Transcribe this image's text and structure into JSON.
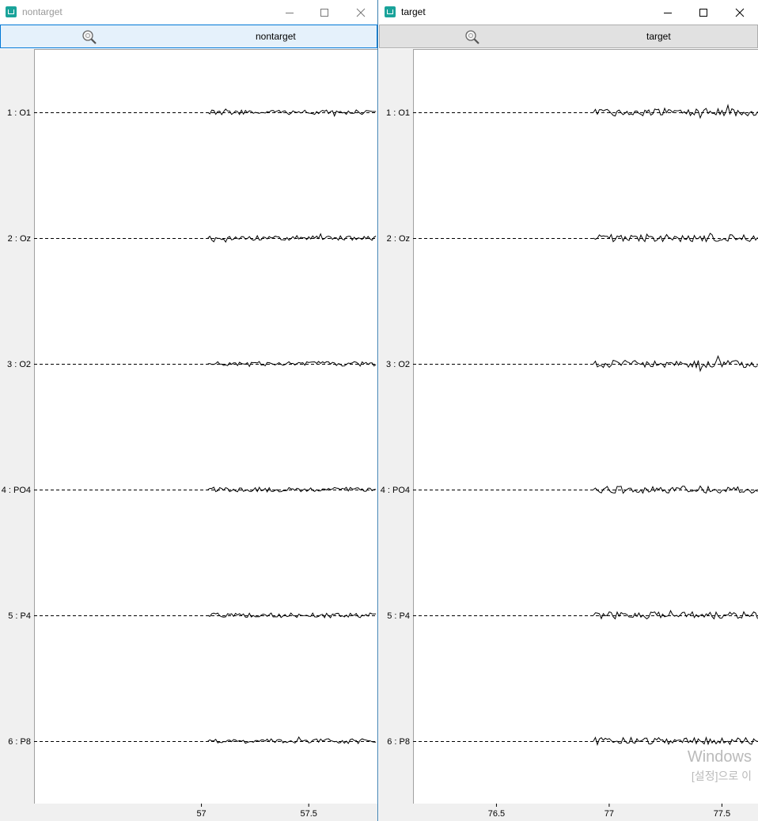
{
  "windows": [
    {
      "title": "nontarget",
      "toolbar_label": "nontarget",
      "channels": [
        "1 : O1",
        "2 : Oz",
        "3 : O2",
        "4 : PO4",
        "5 : P4",
        "6 : P8"
      ],
      "x_ticks": [
        {
          "value": 57,
          "label": "57"
        },
        {
          "value": 57.5,
          "label": "57.5"
        }
      ],
      "x_range": [
        56.22,
        57.82
      ],
      "signal_start": 57.03
    },
    {
      "title": "target",
      "toolbar_label": "target",
      "channels": [
        "1 : O1",
        "2 : Oz",
        "3 : O2",
        "4 : PO4",
        "5 : P4",
        "6 : P8"
      ],
      "x_ticks": [
        {
          "value": 76.5,
          "label": "76.5"
        },
        {
          "value": 77,
          "label": "77"
        },
        {
          "value": 77.5,
          "label": "77.5"
        }
      ],
      "x_range": [
        76.13,
        77.66
      ],
      "signal_start": 76.93
    }
  ],
  "watermark": {
    "line1": "Windows",
    "line2": "[설정]으로 이"
  },
  "colors": {
    "trace": "#000000",
    "label_gutter": "#f0f0f0",
    "active_toolbar": "#e5f1fb",
    "window_border": "#3c7fb1"
  }
}
